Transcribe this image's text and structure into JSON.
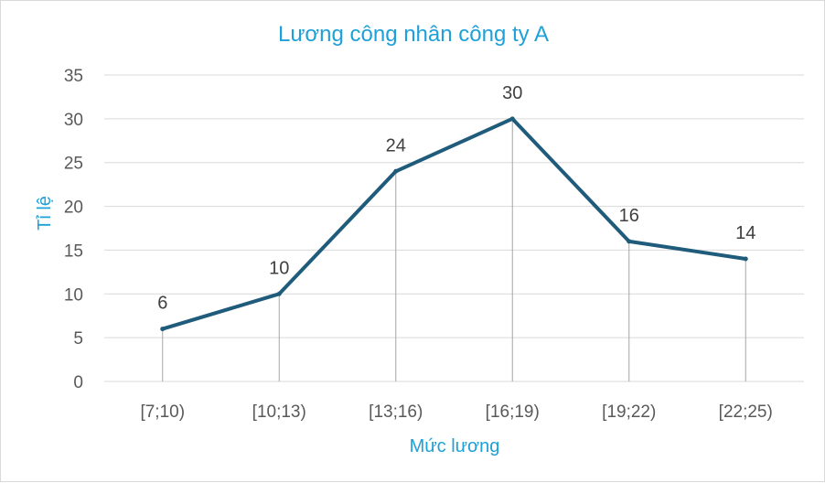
{
  "chart_data": {
    "type": "line",
    "title": "Lương công nhân công ty A",
    "xlabel": "Mức lương",
    "ylabel": "Tỉ lệ",
    "categories": [
      "[7;10)",
      "[10;13)",
      "[13;16)",
      "[16;19)",
      "[19;22)",
      "[22;25)"
    ],
    "values": [
      6,
      10,
      24,
      30,
      16,
      14
    ],
    "ylim": [
      0,
      35
    ],
    "yticks": [
      0,
      5,
      10,
      15,
      20,
      25,
      30,
      35
    ],
    "grid": true,
    "drop_lines": true,
    "data_labels": true,
    "legend": "none",
    "colors": {
      "line": "#1f5b7a",
      "title": "#1ea0d8",
      "axis_title": "#1ea0d8",
      "gridline": "#d9d9d9",
      "drop_line": "#a6a6a6"
    }
  }
}
